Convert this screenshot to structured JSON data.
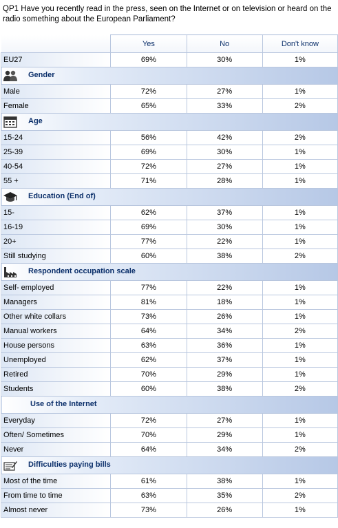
{
  "question": "QP1  Have you recently read in the press, seen on the Internet or on television or heard on the radio something about the European Parliament?",
  "columns": [
    "Yes",
    "No",
    "Don't know"
  ],
  "total": {
    "label": "EU27",
    "values": [
      "69%",
      "30%",
      "1%"
    ]
  },
  "sections": [
    {
      "title": "Gender",
      "icon": "people-icon",
      "rows": [
        {
          "label": "Male",
          "values": [
            "72%",
            "27%",
            "1%"
          ]
        },
        {
          "label": "Female",
          "values": [
            "65%",
            "33%",
            "2%"
          ]
        }
      ]
    },
    {
      "title": "Age",
      "icon": "calendar-icon",
      "rows": [
        {
          "label": "15-24",
          "values": [
            "56%",
            "42%",
            "2%"
          ]
        },
        {
          "label": "25-39",
          "values": [
            "69%",
            "30%",
            "1%"
          ]
        },
        {
          "label": "40-54",
          "values": [
            "72%",
            "27%",
            "1%"
          ]
        },
        {
          "label": "55 +",
          "values": [
            "71%",
            "28%",
            "1%"
          ]
        }
      ]
    },
    {
      "title": "Education (End of)",
      "icon": "graduation-cap-icon",
      "rows": [
        {
          "label": "15-",
          "values": [
            "62%",
            "37%",
            "1%"
          ]
        },
        {
          "label": "16-19",
          "values": [
            "69%",
            "30%",
            "1%"
          ]
        },
        {
          "label": "20+",
          "values": [
            "77%",
            "22%",
            "1%"
          ]
        },
        {
          "label": "Still studying",
          "values": [
            "60%",
            "38%",
            "2%"
          ]
        }
      ]
    },
    {
      "title": "Respondent occupation scale",
      "icon": "factory-icon",
      "rows": [
        {
          "label": "Self- employed",
          "values": [
            "77%",
            "22%",
            "1%"
          ]
        },
        {
          "label": "Managers",
          "values": [
            "81%",
            "18%",
            "1%"
          ]
        },
        {
          "label": "Other white collars",
          "values": [
            "73%",
            "26%",
            "1%"
          ]
        },
        {
          "label": "Manual workers",
          "values": [
            "64%",
            "34%",
            "2%"
          ]
        },
        {
          "label": "House persons",
          "values": [
            "63%",
            "36%",
            "1%"
          ]
        },
        {
          "label": "Unemployed",
          "values": [
            "62%",
            "37%",
            "1%"
          ]
        },
        {
          "label": "Retired",
          "values": [
            "70%",
            "29%",
            "1%"
          ]
        },
        {
          "label": "Students",
          "values": [
            "60%",
            "38%",
            "2%"
          ]
        }
      ]
    },
    {
      "title": "Use of the Internet",
      "icon": "",
      "rows": [
        {
          "label": "Everyday",
          "values": [
            "72%",
            "27%",
            "1%"
          ]
        },
        {
          "label": "Often/ Sometimes",
          "values": [
            "70%",
            "29%",
            "1%"
          ]
        },
        {
          "label": "Never",
          "values": [
            "64%",
            "34%",
            "2%"
          ]
        }
      ]
    },
    {
      "title": "Difficulties paying bills",
      "icon": "bills-icon",
      "rows": [
        {
          "label": "Most of the time",
          "values": [
            "61%",
            "38%",
            "1%"
          ]
        },
        {
          "label": "From time to time",
          "values": [
            "63%",
            "35%",
            "2%"
          ]
        },
        {
          "label": "Almost never",
          "values": [
            "73%",
            "26%",
            "1%"
          ]
        }
      ]
    }
  ]
}
